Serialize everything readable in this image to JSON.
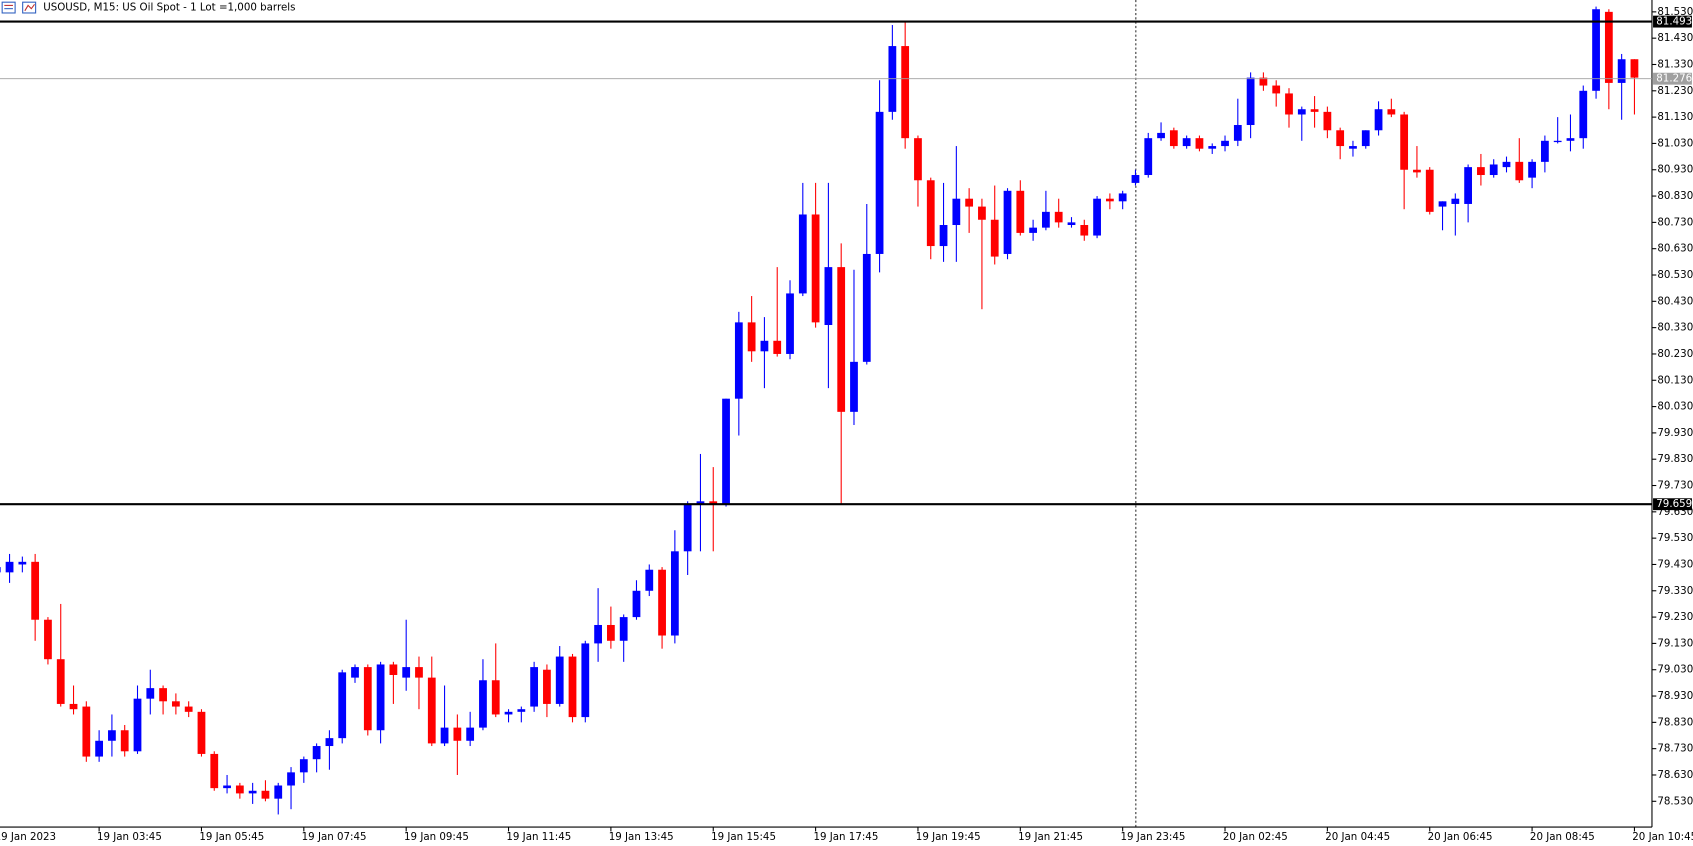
{
  "chart_data": {
    "type": "candlestick",
    "title": "USOUSD, M15:  US Oil Spot - 1 Lot =1,000 barrels",
    "up_color": "#0000ff",
    "down_color": "#ff0000",
    "open": [
      79.4,
      79.4,
      79.43,
      79.44,
      79.22,
      79.07,
      78.9,
      78.89,
      78.7,
      78.76,
      78.8,
      78.72,
      78.92,
      78.96,
      78.91,
      78.89,
      78.87,
      78.71,
      78.58,
      78.59,
      78.56,
      78.57,
      78.54,
      78.59,
      78.64,
      78.69,
      78.74,
      78.77,
      79.0,
      79.04,
      78.8,
      79.05,
      79.0,
      79.04,
      79.0,
      78.75,
      78.81,
      78.76,
      78.81,
      78.99,
      78.86,
      78.87,
      78.89,
      79.03,
      78.9,
      79.08,
      78.85,
      79.13,
      79.2,
      79.14,
      79.23,
      79.33,
      79.41,
      79.16,
      79.48,
      79.66,
      79.67,
      79.66,
      80.06,
      80.35,
      80.24,
      80.28,
      80.23,
      80.46,
      80.76,
      80.34,
      80.56,
      80.01,
      80.2,
      80.61,
      81.15,
      81.4,
      81.05,
      80.89,
      80.64,
      80.72,
      80.82,
      80.79,
      80.74,
      80.61,
      80.85,
      80.69,
      80.71,
      80.77,
      80.72,
      80.72,
      80.68,
      80.82,
      80.81,
      80.88,
      80.91,
      81.05,
      81.08,
      81.02,
      81.05,
      81.01,
      81.02,
      81.04,
      81.1,
      81.28,
      81.25,
      81.22,
      81.14,
      81.16,
      81.15,
      81.08,
      81.01,
      81.02,
      81.08,
      81.16,
      81.14,
      80.93,
      80.93,
      80.79,
      80.8,
      80.8,
      80.94,
      80.91,
      80.94,
      80.96,
      80.9,
      80.96,
      81.04,
      81.04,
      81.05,
      81.23,
      81.53,
      81.26,
      81.35
    ],
    "high": [
      79.45,
      79.47,
      79.46,
      79.47,
      79.23,
      79.28,
      78.97,
      78.91,
      78.8,
      78.86,
      78.82,
      78.97,
      79.03,
      78.97,
      78.94,
      78.91,
      78.88,
      78.72,
      78.63,
      78.6,
      78.6,
      78.61,
      78.6,
      78.66,
      78.7,
      78.75,
      78.8,
      79.03,
      79.05,
      79.05,
      79.06,
      79.06,
      79.22,
      79.08,
      79.08,
      78.97,
      78.86,
      78.87,
      79.07,
      79.13,
      78.88,
      78.89,
      79.06,
      79.05,
      79.12,
      79.09,
      79.14,
      79.34,
      79.27,
      79.24,
      79.37,
      79.43,
      79.42,
      79.56,
      79.67,
      79.85,
      79.8,
      80.06,
      80.39,
      80.45,
      80.37,
      80.56,
      80.51,
      80.88,
      80.88,
      80.88,
      80.65,
      80.55,
      80.8,
      81.27,
      81.48,
      81.49,
      81.06,
      80.9,
      80.88,
      81.02,
      80.86,
      80.82,
      80.87,
      80.86,
      80.89,
      80.74,
      80.85,
      80.82,
      80.75,
      80.74,
      80.83,
      80.84,
      80.85,
      80.93,
      81.07,
      81.11,
      81.09,
      81.06,
      81.06,
      81.03,
      81.06,
      81.2,
      81.3,
      81.3,
      81.27,
      81.24,
      81.17,
      81.21,
      81.17,
      81.09,
      81.04,
      81.08,
      81.19,
      81.2,
      81.15,
      81.02,
      80.94,
      80.81,
      80.84,
      80.95,
      80.99,
      80.97,
      80.98,
      81.05,
      80.97,
      81.06,
      81.13,
      81.14,
      81.25,
      81.55,
      81.54,
      81.37,
      81.35
    ],
    "low": [
      79.37,
      79.36,
      79.4,
      79.14,
      79.05,
      78.89,
      78.86,
      78.68,
      78.68,
      78.7,
      78.7,
      78.71,
      78.86,
      78.86,
      78.86,
      78.85,
      78.7,
      78.57,
      78.56,
      78.54,
      78.52,
      78.53,
      78.48,
      78.5,
      78.6,
      78.64,
      78.65,
      78.75,
      78.98,
      78.78,
      78.75,
      78.9,
      78.95,
      78.88,
      78.74,
      78.74,
      78.63,
      78.74,
      78.8,
      78.85,
      78.83,
      78.83,
      78.87,
      78.85,
      78.89,
      78.83,
      78.83,
      79.06,
      79.11,
      79.06,
      79.22,
      79.31,
      79.11,
      79.13,
      79.39,
      79.48,
      79.48,
      79.65,
      79.92,
      80.2,
      80.1,
      80.22,
      80.21,
      80.45,
      80.33,
      80.1,
      79.66,
      79.96,
      80.19,
      80.54,
      81.12,
      81.01,
      80.79,
      80.59,
      80.58,
      80.58,
      80.69,
      80.4,
      80.57,
      80.59,
      80.68,
      80.66,
      80.7,
      80.71,
      80.71,
      80.66,
      80.67,
      80.78,
      80.78,
      80.87,
      80.9,
      81.04,
      81.01,
      81.01,
      81.0,
      80.99,
      81.0,
      81.02,
      81.05,
      81.23,
      81.17,
      81.09,
      81.04,
      81.09,
      81.05,
      80.97,
      80.98,
      81.01,
      81.06,
      81.13,
      80.78,
      80.9,
      80.76,
      80.7,
      80.68,
      80.73,
      80.87,
      80.9,
      80.92,
      80.88,
      80.86,
      80.92,
      81.03,
      81.0,
      81.01,
      81.2,
      81.16,
      81.12,
      81.14
    ],
    "close": [
      79.42,
      79.44,
      79.44,
      79.22,
      79.07,
      78.9,
      78.88,
      78.7,
      78.76,
      78.8,
      78.72,
      78.92,
      78.96,
      78.91,
      78.89,
      78.87,
      78.71,
      78.58,
      78.59,
      78.56,
      78.57,
      78.54,
      78.59,
      78.64,
      78.69,
      78.74,
      78.77,
      79.02,
      79.04,
      78.8,
      79.05,
      79.01,
      79.04,
      79.0,
      78.75,
      78.81,
      78.76,
      78.81,
      78.99,
      78.86,
      78.87,
      78.88,
      79.04,
      78.9,
      79.08,
      78.85,
      79.13,
      79.2,
      79.14,
      79.23,
      79.33,
      79.41,
      79.16,
      79.48,
      79.66,
      79.67,
      79.66,
      80.06,
      80.35,
      80.24,
      80.28,
      80.23,
      80.46,
      80.76,
      80.35,
      80.56,
      80.01,
      80.2,
      80.61,
      81.15,
      81.4,
      81.05,
      80.89,
      80.64,
      80.72,
      80.82,
      80.79,
      80.74,
      80.6,
      80.85,
      80.69,
      80.71,
      80.77,
      80.73,
      80.73,
      80.68,
      80.82,
      80.81,
      80.84,
      80.91,
      81.05,
      81.07,
      81.02,
      81.05,
      81.01,
      81.02,
      81.04,
      81.1,
      81.28,
      81.25,
      81.22,
      81.14,
      81.16,
      81.15,
      81.08,
      81.02,
      81.02,
      81.08,
      81.16,
      81.14,
      80.93,
      80.92,
      80.77,
      80.81,
      80.82,
      80.94,
      80.91,
      80.95,
      80.96,
      80.89,
      80.96,
      81.04,
      81.04,
      81.05,
      81.23,
      81.54,
      81.26,
      81.35,
      81.28
    ],
    "xlim": [
      0.253,
      129.37
    ],
    "xticks": [
      {
        "value": 0,
        "label": "19 Jan 2023"
      },
      {
        "value": 8,
        "label": "19 Jan 03:45"
      },
      {
        "value": 16,
        "label": "19 Jan 05:45"
      },
      {
        "value": 24,
        "label": "19 Jan 07:45"
      },
      {
        "value": 32,
        "label": "19 Jan 09:45"
      },
      {
        "value": 40,
        "label": "19 Jan 11:45"
      },
      {
        "value": 48,
        "label": "19 Jan 13:45"
      },
      {
        "value": 56,
        "label": "19 Jan 15:45"
      },
      {
        "value": 64,
        "label": "19 Jan 17:45"
      },
      {
        "value": 72,
        "label": "19 Jan 19:45"
      },
      {
        "value": 80,
        "label": "19 Jan 21:45"
      },
      {
        "value": 88,
        "label": "19 Jan 23:45"
      },
      {
        "value": 96,
        "label": "20 Jan 02:45"
      },
      {
        "value": 104,
        "label": "20 Jan 04:45"
      },
      {
        "value": 112,
        "label": "20 Jan 06:45"
      },
      {
        "value": 120,
        "label": "20 Jan 08:45"
      },
      {
        "value": 128,
        "label": "20 Jan 10:45"
      }
    ],
    "ylim": [
      78.432,
      81.575
    ],
    "yticks": [
      {
        "value": 78.53,
        "label": "78.530"
      },
      {
        "value": 78.63,
        "label": "78.630"
      },
      {
        "value": 78.73,
        "label": "78.730"
      },
      {
        "value": 78.83,
        "label": "78.830"
      },
      {
        "value": 78.93,
        "label": "78.930"
      },
      {
        "value": 79.03,
        "label": "79.030"
      },
      {
        "value": 79.13,
        "label": "79.130"
      },
      {
        "value": 79.23,
        "label": "79.230"
      },
      {
        "value": 79.33,
        "label": "79.330"
      },
      {
        "value": 79.43,
        "label": "79.430"
      },
      {
        "value": 79.53,
        "label": "79.530"
      },
      {
        "value": 79.63,
        "label": "79.630"
      },
      {
        "value": 79.73,
        "label": "79.730"
      },
      {
        "value": 79.83,
        "label": "79.830"
      },
      {
        "value": 79.93,
        "label": "79.930"
      },
      {
        "value": 80.03,
        "label": "80.030"
      },
      {
        "value": 80.13,
        "label": "80.130"
      },
      {
        "value": 80.23,
        "label": "80.230"
      },
      {
        "value": 80.33,
        "label": "80.330"
      },
      {
        "value": 80.43,
        "label": "80.430"
      },
      {
        "value": 80.53,
        "label": "80.530"
      },
      {
        "value": 80.63,
        "label": "80.630"
      },
      {
        "value": 80.73,
        "label": "80.730"
      },
      {
        "value": 80.83,
        "label": "80.830"
      },
      {
        "value": 80.93,
        "label": "80.930"
      },
      {
        "value": 81.03,
        "label": "81.030"
      },
      {
        "value": 81.13,
        "label": "81.130"
      },
      {
        "value": 81.23,
        "label": "81.230"
      },
      {
        "value": 81.33,
        "label": "81.330"
      },
      {
        "value": 81.43,
        "label": "81.430"
      },
      {
        "value": 81.53,
        "label": "81.530"
      }
    ],
    "levels": [
      81.493,
      79.659
    ],
    "level_color": "#000000",
    "bid": 81.276,
    "bid_color": "#a0a0a0"
  }
}
